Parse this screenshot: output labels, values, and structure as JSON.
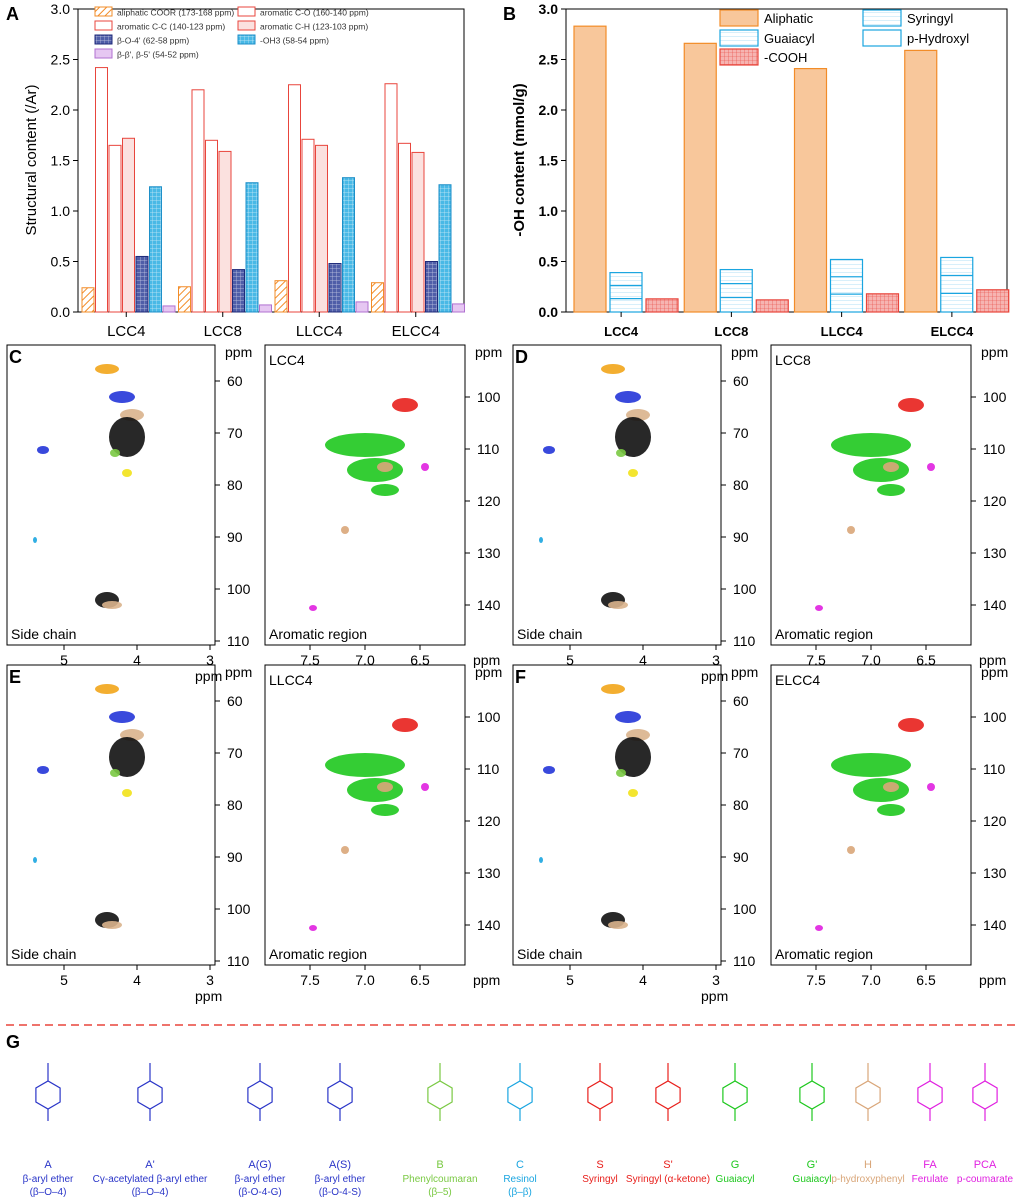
{
  "chart_data": [
    {
      "panel": "A",
      "type": "bar",
      "ylabel": "Structural content (/Ar)",
      "ylim": [
        0.0,
        3.0
      ],
      "yticks": [
        "0.0",
        "0.5",
        "1.0",
        "1.5",
        "2.0",
        "2.5",
        "3.0"
      ],
      "categories": [
        "LCC4",
        "LCC8",
        "LLCC4",
        "ELCC4"
      ],
      "series": [
        {
          "name": "aliphatic COOR (173-168 ppm)",
          "values": [
            0.24,
            0.25,
            0.31,
            0.29
          ],
          "color": "#F28C28",
          "pattern": "hatch"
        },
        {
          "name": "aromatic C-O (160-140 ppm)",
          "values": [
            2.42,
            2.2,
            2.25,
            2.26
          ],
          "color": "#E8453C",
          "pattern": "none"
        },
        {
          "name": "aromatic C-C (140-123 ppm)",
          "values": [
            1.65,
            1.7,
            1.71,
            1.67
          ],
          "color": "#E8453C",
          "pattern": "none"
        },
        {
          "name": "aromatic C-H (123-103 ppm)",
          "values": [
            1.72,
            1.59,
            1.65,
            1.58
          ],
          "color": "#E8453C",
          "pattern": "light"
        },
        {
          "name": "β-O-4' (62-58 ppm)",
          "values": [
            0.55,
            0.42,
            0.48,
            0.5
          ],
          "color": "#3F4F9F",
          "pattern": "grid"
        },
        {
          "name": "-OH3 (58-54 ppm)",
          "values": [
            1.24,
            1.28,
            1.33,
            1.26
          ],
          "color": "#29A8E0",
          "pattern": "grid"
        },
        {
          "name": "β-β', β-5' (54-52 ppm)",
          "values": [
            0.06,
            0.07,
            0.1,
            0.08
          ],
          "color": "#C88CE0",
          "pattern": "none"
        }
      ]
    },
    {
      "panel": "B",
      "type": "bar",
      "ylabel": "-OH content (mmol/g)",
      "ylim": [
        0.0,
        3.0
      ],
      "yticks": [
        "0.0",
        "0.5",
        "1.0",
        "1.5",
        "2.0",
        "2.5",
        "3.0"
      ],
      "categories": [
        "LCC4",
        "LCC8",
        "LLCC4",
        "ELCC4"
      ],
      "series": [
        {
          "name": "Aliphatic",
          "values": [
            2.83,
            2.66,
            2.41,
            2.59
          ],
          "color": "#F5B37A",
          "pattern": "solid"
        },
        {
          "name": "Guaiacyl",
          "values": [
            0.39,
            0.42,
            0.52,
            0.54
          ],
          "color": "#29A8E0",
          "pattern": "stacked"
        },
        {
          "name": "-COOH",
          "values": [
            0.13,
            0.12,
            0.18,
            0.22
          ],
          "color": "#E8453C",
          "pattern": "grid"
        }
      ],
      "legend_extra": [
        "Syringyl",
        "p-Hydroxyl"
      ]
    }
  ],
  "panel_letters": [
    "A",
    "B",
    "C",
    "D",
    "E",
    "F",
    "G"
  ],
  "nmr_panels": [
    {
      "id": "C",
      "sample": "LCC4",
      "side": "Side chain",
      "aromatic": "Aromatic region"
    },
    {
      "id": "D",
      "sample": "LCC8",
      "side": "Side chain",
      "aromatic": "Aromatic region"
    },
    {
      "id": "E",
      "sample": "LLCC4",
      "side": "Side chain",
      "aromatic": "Aromatic region"
    },
    {
      "id": "F",
      "sample": "ELCC4",
      "side": "Side chain",
      "aromatic": "Aromatic region"
    }
  ],
  "nmr_axes": {
    "unit": "ppm",
    "side_x": [
      "5",
      "4",
      "3"
    ],
    "side_y": [
      "60",
      "70",
      "80",
      "90",
      "100",
      "110"
    ],
    "arom_x": [
      "7.5",
      "7.0",
      "6.5"
    ],
    "arom_y": [
      "100",
      "110",
      "120",
      "130",
      "140"
    ]
  },
  "structures": [
    {
      "code": "A",
      "name": "β-aryl ether",
      "sub": "(β–O–4)",
      "color": "#2A35C8"
    },
    {
      "code": "A'",
      "name": "Cγ-acetylated β-aryl ether",
      "sub": "(β–O–4)",
      "color": "#2A35C8"
    },
    {
      "code": "A(G)",
      "name": "β-aryl ether",
      "sub": "(β-O-4-G)",
      "color": "#2A35C8"
    },
    {
      "code": "A(S)",
      "name": "β-aryl ether",
      "sub": "(β-O-4-S)",
      "color": "#2A35C8"
    },
    {
      "code": "B",
      "name": "Phenylcoumaran",
      "sub": "(β–5)",
      "color": "#7AC943"
    },
    {
      "code": "C",
      "name": "Resinol",
      "sub": "(β–β)",
      "color": "#1AA5E0"
    },
    {
      "code": "S",
      "name": "Syringyl",
      "sub": "",
      "color": "#E8201C"
    },
    {
      "code": "S'",
      "name": "Syringyl (α-ketone)",
      "sub": "",
      "color": "#E8201C"
    },
    {
      "code": "G",
      "name": "Guaiacyl",
      "sub": "",
      "color": "#1EC81E"
    },
    {
      "code": "G'",
      "name": "Guaiacyl",
      "sub": "",
      "color": "#1EC81E"
    },
    {
      "code": "H",
      "name": "p-hydroxyphenyl",
      "sub": "",
      "color": "#D9A679"
    },
    {
      "code": "FA",
      "name": "Ferulate",
      "sub": "",
      "color": "#E020E0"
    },
    {
      "code": "PCA",
      "name": "p-coumarate",
      "sub": "",
      "color": "#E020E0"
    }
  ]
}
